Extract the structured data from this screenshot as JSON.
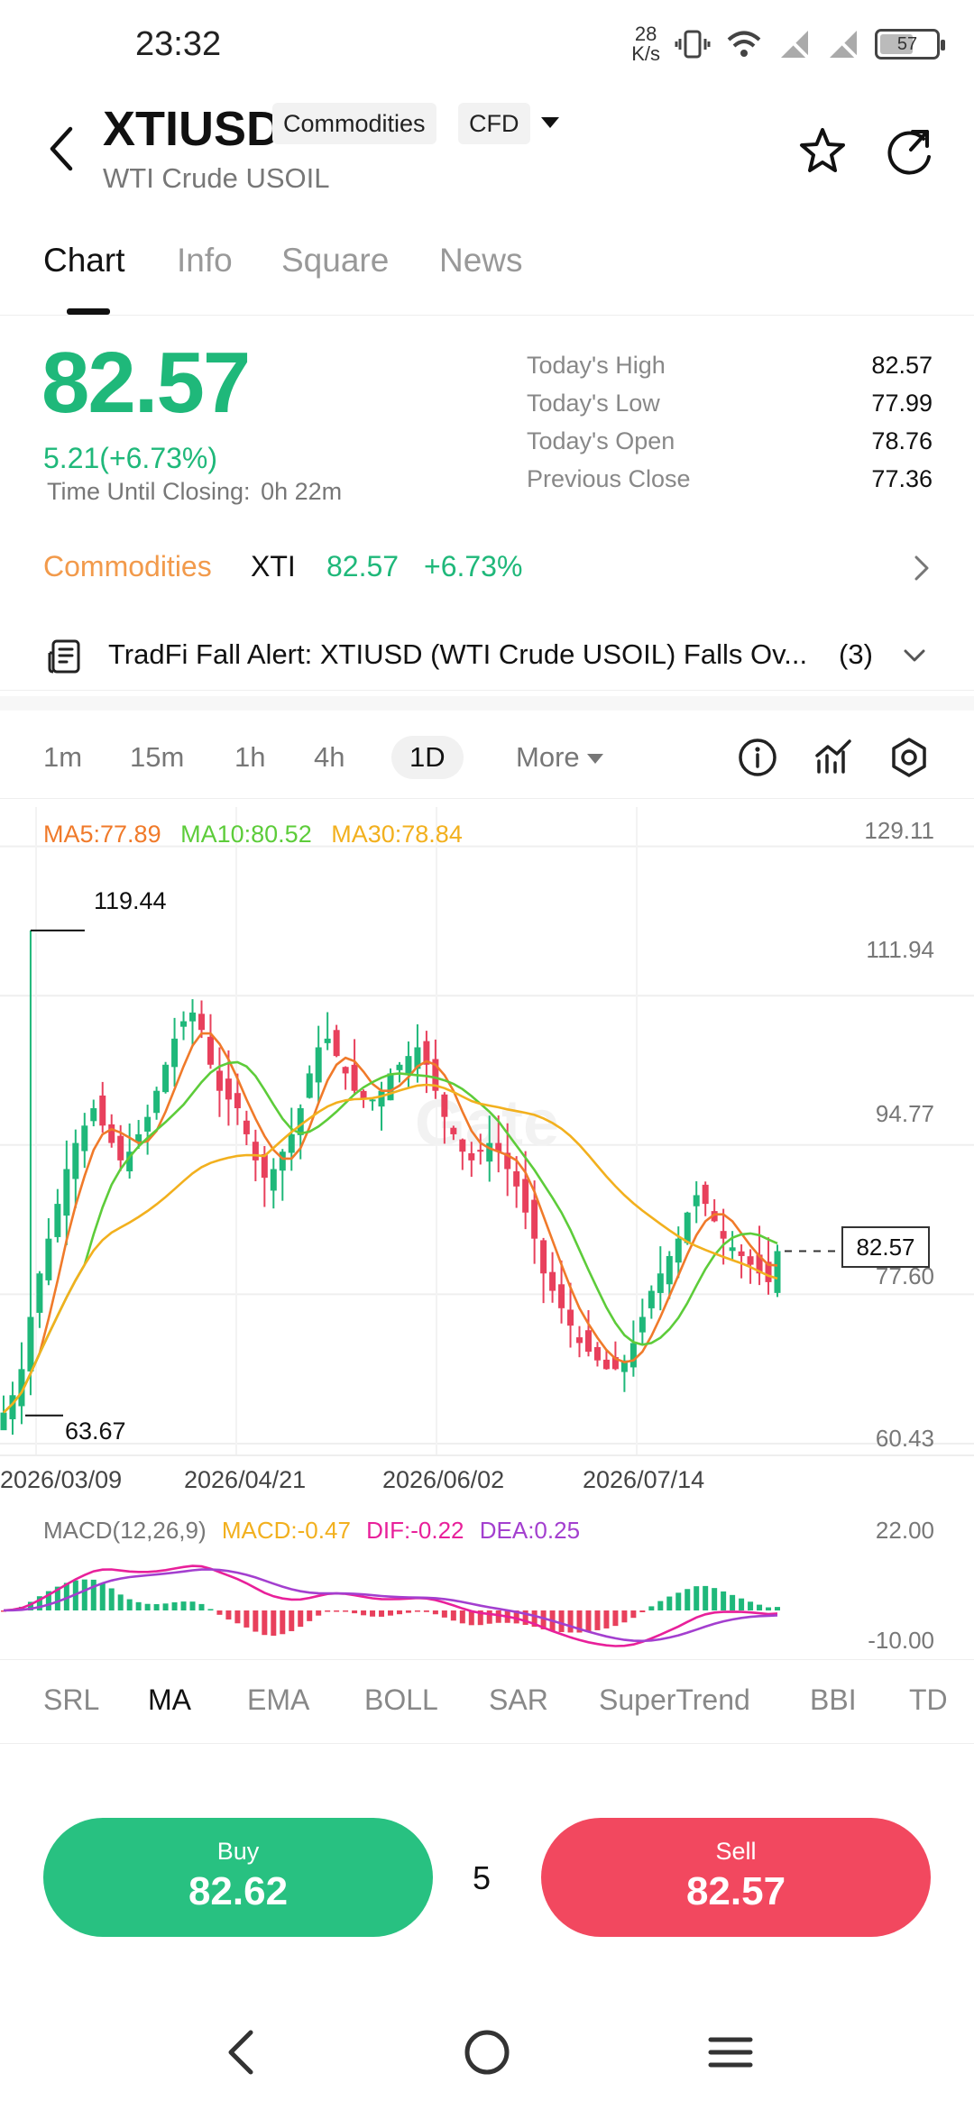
{
  "status_bar": {
    "time": "23:32",
    "net_speed_value": "28",
    "net_speed_unit": "K/s",
    "battery": "57"
  },
  "header": {
    "symbol": "XTIUSD",
    "tags": [
      "Commodities",
      "CFD"
    ],
    "subtitle": "WTI Crude USOIL"
  },
  "tabs": [
    "Chart",
    "Info",
    "Square",
    "News"
  ],
  "quote": {
    "price": "82.57",
    "change": "5.21(+6.73%)",
    "closing_label": "Time Until Closing:",
    "closing_value": "0h 22m",
    "stats": [
      {
        "label": "Today's High",
        "value": "82.57"
      },
      {
        "label": "Today's Low",
        "value": "77.99"
      },
      {
        "label": "Today's Open",
        "value": "78.76"
      },
      {
        "label": "Previous Close",
        "value": "77.36"
      }
    ]
  },
  "market": {
    "name": "Commodities",
    "code": "XTI",
    "price": "82.57",
    "change_pct": "+6.73%"
  },
  "alert": {
    "text": "TradFi Fall Alert: XTIUSD (WTI Crude USOIL) Falls Ov...",
    "count": "(3)"
  },
  "intervals": [
    "1m",
    "15m",
    "1h",
    "4h",
    "1D"
  ],
  "more_label": "More",
  "chart": {
    "ma_legend": {
      "ma5": "MA5:77.89",
      "ma10": "MA10:80.52",
      "ma30": "MA30:78.84"
    },
    "price_axis": [
      "129.11",
      "111.94",
      "94.77",
      "77.60",
      "60.43"
    ],
    "date_axis": [
      "2026/03/09",
      "2026/04/21",
      "2026/06/02",
      "2026/07/14"
    ],
    "high_marker": "119.44",
    "low_marker": "63.67",
    "last_price": "82.57",
    "watermark": "Gate"
  },
  "macd": {
    "legend": {
      "params": "MACD(12,26,9)",
      "macd": "MACD:-0.47",
      "dif": "DIF:-0.22",
      "dea": "DEA:0.25"
    },
    "axis": [
      "22.00",
      "-10.00"
    ]
  },
  "indicators": [
    "SRL",
    "MA",
    "EMA",
    "BOLL",
    "SAR",
    "SuperTrend",
    "BBI",
    "TD"
  ],
  "trade": {
    "buy_label": "Buy",
    "buy_price": "82.62",
    "quantity": "5",
    "sell_label": "Sell",
    "sell_price": "82.57"
  },
  "colors": {
    "up": "#1fb87a",
    "down": "#e8405c",
    "ma5": "#f07a2a",
    "ma10": "#5dcc3a",
    "ma30": "#f2b01e",
    "dif": "#e8209a",
    "dea": "#a33fcf",
    "accent": "#f29a4b"
  },
  "chart_data": {
    "type": "candlestick",
    "title": "",
    "xlabel": "",
    "ylabel": "",
    "ylim": [
      60.43,
      129.11
    ],
    "x_ticks": [
      "2026/03/09",
      "2026/04/21",
      "2026/06/02",
      "2026/07/14"
    ],
    "y_ticks": [
      129.11,
      111.94,
      94.77,
      77.6,
      60.43
    ],
    "series": [
      {
        "name": "MA5",
        "last_value": 77.89
      },
      {
        "name": "MA10",
        "last_value": 80.52
      },
      {
        "name": "MA30",
        "last_value": 78.84
      }
    ],
    "close_path": [
      64,
      66,
      69,
      75,
      80,
      84,
      88,
      92,
      95,
      97,
      99,
      97,
      95,
      93,
      94,
      96,
      98,
      101,
      104,
      107,
      109,
      110,
      108,
      104,
      101,
      100,
      99,
      96,
      93,
      91,
      92,
      94,
      96,
      99,
      103,
      106,
      107,
      105,
      103,
      101,
      100,
      100,
      101,
      103,
      104,
      105,
      106,
      104,
      101,
      98,
      96,
      94,
      93,
      94,
      95,
      94,
      92,
      90,
      87,
      84,
      80,
      78,
      76,
      74,
      72,
      71,
      70,
      69,
      69,
      70,
      72,
      75,
      78,
      80,
      82,
      84,
      87,
      89,
      88,
      86,
      84,
      83,
      82,
      81,
      80,
      79,
      82.57
    ],
    "high": 119.44,
    "low": 63.67,
    "last": 82.57,
    "grid": true
  }
}
